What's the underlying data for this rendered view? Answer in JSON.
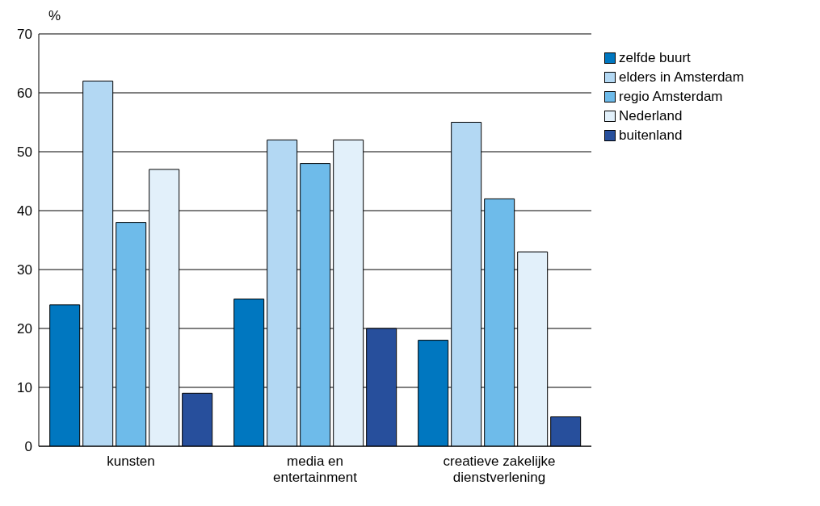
{
  "chart_data": {
    "type": "bar",
    "ylabel": "%",
    "categories": [
      "kunsten",
      "media en entertainment",
      "creatieve zakelijke dienstverlening"
    ],
    "series": [
      {
        "name": "zelfde buurt",
        "color": "#0077c0",
        "values": [
          24,
          25,
          18
        ]
      },
      {
        "name": "elders in Amsterdam",
        "color": "#b3d8f3",
        "values": [
          62,
          52,
          55
        ]
      },
      {
        "name": "regio Amsterdam",
        "color": "#6ebbea",
        "values": [
          38,
          48,
          42
        ]
      },
      {
        "name": "Nederland",
        "color": "#e2f0fa",
        "values": [
          47,
          52,
          33
        ]
      },
      {
        "name": "buitenland",
        "color": "#274f9c",
        "values": [
          9,
          20,
          5
        ]
      }
    ],
    "ylim": [
      0,
      70
    ],
    "yticks": [
      0,
      10,
      20,
      30,
      40,
      50,
      60,
      70
    ],
    "grid": "y",
    "legend": "top right"
  }
}
